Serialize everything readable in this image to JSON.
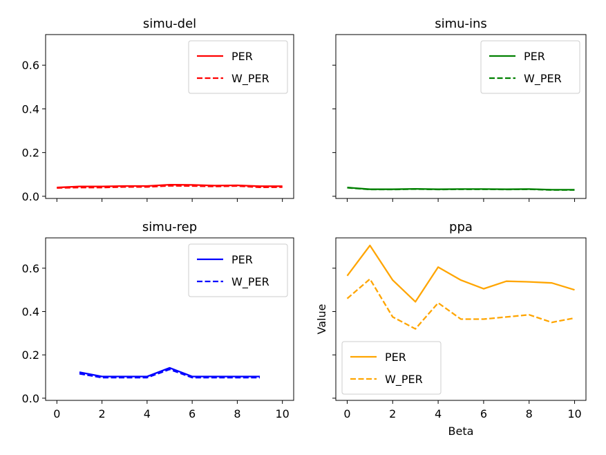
{
  "chart_data": [
    {
      "type": "line",
      "title": "simu-del",
      "xlabel": "",
      "ylabel": "",
      "xlim": [
        -0.5,
        10.5
      ],
      "ylim": [
        -0.01,
        0.74
      ],
      "xticks": [
        0,
        2,
        4,
        6,
        8,
        10
      ],
      "yticks": [
        0.0,
        0.2,
        0.4,
        0.6
      ],
      "show_xtick_labels": false,
      "show_ytick_labels": true,
      "legend": "top-right",
      "x": [
        0,
        1,
        2,
        3,
        4,
        5,
        6,
        7,
        8,
        9,
        10
      ],
      "series": [
        {
          "name": "PER",
          "style": "solid",
          "color": "#ff0000",
          "values": [
            0.04,
            0.045,
            0.045,
            0.047,
            0.047,
            0.053,
            0.052,
            0.049,
            0.05,
            0.046,
            0.046
          ]
        },
        {
          "name": "W_PER",
          "style": "dashed",
          "color": "#ff0000",
          "values": [
            0.038,
            0.04,
            0.04,
            0.043,
            0.043,
            0.048,
            0.047,
            0.045,
            0.047,
            0.041,
            0.042
          ]
        }
      ]
    },
    {
      "type": "line",
      "title": "simu-ins",
      "xlabel": "",
      "ylabel": "",
      "xlim": [
        -0.5,
        10.5
      ],
      "ylim": [
        -0.01,
        0.74
      ],
      "xticks": [
        0,
        2,
        4,
        6,
        8,
        10
      ],
      "yticks": [
        0.0,
        0.2,
        0.4,
        0.6
      ],
      "show_xtick_labels": false,
      "show_ytick_labels": false,
      "legend": "top-right",
      "x": [
        0,
        1,
        2,
        3,
        4,
        5,
        6,
        7,
        8,
        9,
        10
      ],
      "series": [
        {
          "name": "PER",
          "style": "solid",
          "color": "#008000",
          "values": [
            0.04,
            0.032,
            0.032,
            0.034,
            0.032,
            0.033,
            0.033,
            0.032,
            0.033,
            0.03,
            0.03
          ]
        },
        {
          "name": "W_PER",
          "style": "dashed",
          "color": "#008000",
          "values": [
            0.039,
            0.031,
            0.031,
            0.033,
            0.031,
            0.032,
            0.032,
            0.031,
            0.032,
            0.029,
            0.029
          ]
        }
      ]
    },
    {
      "type": "line",
      "title": "simu-rep",
      "xlabel": "",
      "ylabel": "",
      "xlim": [
        -0.5,
        10.5
      ],
      "ylim": [
        -0.01,
        0.74
      ],
      "xticks": [
        0,
        2,
        4,
        6,
        8,
        10
      ],
      "yticks": [
        0.0,
        0.2,
        0.4,
        0.6
      ],
      "show_xtick_labels": true,
      "show_ytick_labels": true,
      "legend": "top-right",
      "x": [
        1,
        2,
        3,
        4,
        5,
        6,
        7,
        8,
        9
      ],
      "series": [
        {
          "name": "PER",
          "style": "solid",
          "color": "#0000ff",
          "values": [
            0.12,
            0.1,
            0.1,
            0.1,
            0.14,
            0.1,
            0.1,
            0.1,
            0.1
          ]
        },
        {
          "name": "W_PER",
          "style": "dashed",
          "color": "#0000ff",
          "values": [
            0.113,
            0.095,
            0.095,
            0.095,
            0.133,
            0.095,
            0.095,
            0.095,
            0.095
          ]
        }
      ]
    },
    {
      "type": "line",
      "title": "ppa",
      "xlabel": "Beta",
      "ylabel": "Value",
      "xlim": [
        -0.5,
        10.5
      ],
      "ylim": [
        -0.01,
        0.74
      ],
      "xticks": [
        0,
        2,
        4,
        6,
        8,
        10
      ],
      "yticks": [
        0.0,
        0.2,
        0.4,
        0.6
      ],
      "show_xtick_labels": true,
      "show_ytick_labels": false,
      "legend": "bottom-left",
      "x": [
        0,
        1,
        2,
        3,
        4,
        5,
        6,
        7,
        8,
        9,
        10
      ],
      "series": [
        {
          "name": "PER",
          "style": "solid",
          "color": "#ffa500",
          "values": [
            0.565,
            0.705,
            0.545,
            0.445,
            0.605,
            0.545,
            0.505,
            0.54,
            0.537,
            0.532,
            0.5
          ]
        },
        {
          "name": "W_PER",
          "style": "dashed",
          "color": "#ffa500",
          "values": [
            0.46,
            0.55,
            0.375,
            0.32,
            0.44,
            0.365,
            0.365,
            0.375,
            0.385,
            0.35,
            0.37
          ]
        }
      ]
    }
  ]
}
